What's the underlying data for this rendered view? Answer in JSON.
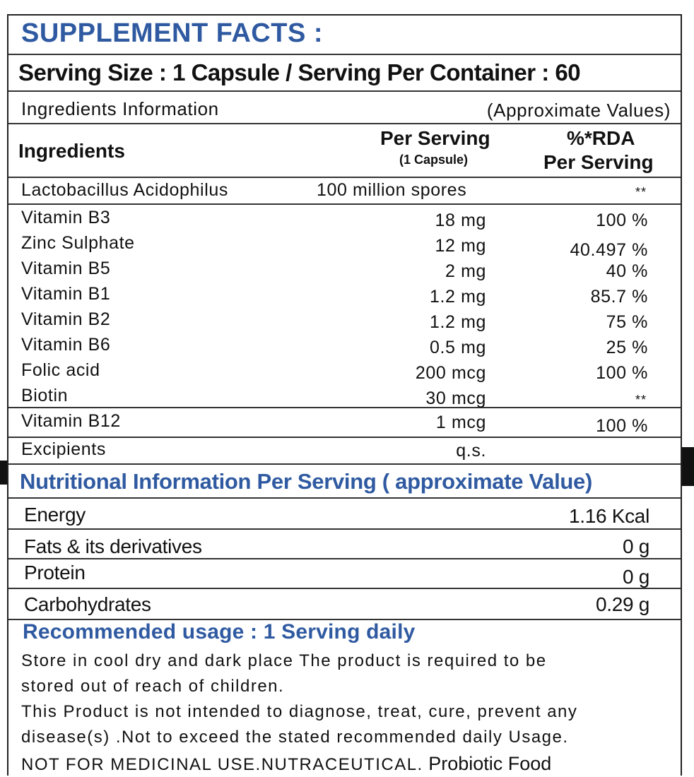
{
  "title": "SUPPLEMENT FACTS :",
  "serving_line": "Serving Size : 1 Capsule / Serving Per Container : 60",
  "info_left": "Ingredients Information",
  "info_right": "(Approximate Values)",
  "header": {
    "ingredients": "Ingredients",
    "per_serving": "Per Serving",
    "per_serving_sub": "(1 Capsule)",
    "rda_line1": "%*RDA",
    "rda_line2": "Per Serving"
  },
  "ingredients": [
    {
      "name": "Lactobacillus Acidophilus",
      "amount": "100 million spores",
      "rda": "**"
    },
    {
      "name": "Vitamin B3",
      "amount": "18 mg",
      "rda": "100 %"
    },
    {
      "name": "Zinc Sulphate",
      "amount": "12 mg",
      "rda": "40.497 %"
    },
    {
      "name": "Vitamin B5",
      "amount": "2 mg",
      "rda": "40 %"
    },
    {
      "name": "Vitamin B1",
      "amount": "1.2 mg",
      "rda": "85.7 %"
    },
    {
      "name": "Vitamin B2",
      "amount": "1.2 mg",
      "rda": "75 %"
    },
    {
      "name": "Vitamin B6",
      "amount": "0.5 mg",
      "rda": "25 %"
    },
    {
      "name": "Folic acid",
      "amount": "200 mcg",
      "rda": "100 %"
    },
    {
      "name": "Biotin",
      "amount": "30 mcg",
      "rda": "**"
    },
    {
      "name": "Vitamin B12",
      "amount": "1 mcg",
      "rda": "100 %"
    },
    {
      "name": "Excipients",
      "amount": "q.s.",
      "rda": ""
    }
  ],
  "nutrition_title": "Nutritional Information Per Serving ( approximate Value)",
  "nutrition": [
    {
      "name": "Energy",
      "value": "1.16 Kcal"
    },
    {
      "name": "Fats & its derivatives",
      "value": "0 g"
    },
    {
      "name": "Protein",
      "value": "0 g"
    },
    {
      "name": "Carbohydrates",
      "value": "0.29 g"
    }
  ],
  "recommended": "Recommended usage : 1 Serving daily",
  "notes": {
    "line1": "Store in cool dry and dark place The product is required to be",
    "line2": "stored out of reach of children.",
    "line3": "This Product is not intended to diagnose, treat, cure, prevent any",
    "line4": "disease(s) .Not to exceed the stated recommended daily Usage.",
    "line5a": "NOT FOR MEDICINAL USE.NUTRACEUTICAL.",
    "line5b": " Probiotic Food"
  },
  "colors": {
    "accent_blue": "#2f5aa1",
    "text": "#111111",
    "rule": "#333333"
  }
}
